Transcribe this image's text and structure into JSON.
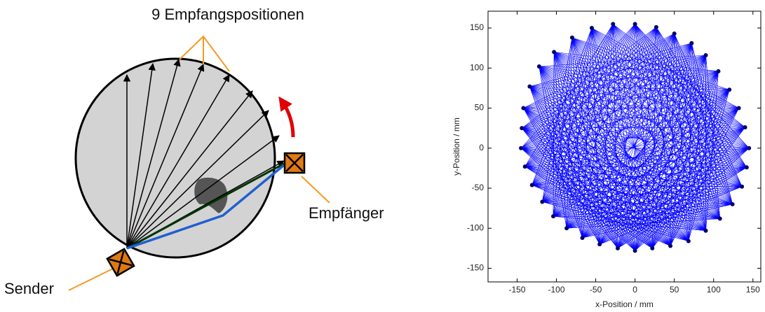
{
  "diagram": {
    "title": "9 Empfangspositionen",
    "receiver": "Empfänger",
    "sender": "Sender"
  },
  "chart_data": {
    "type": "scatter",
    "xlabel": "x-Position  /  mm",
    "ylabel": "y-Position  /  mm",
    "x": [
      0,
      27,
      50,
      72,
      90,
      106,
      120,
      132,
      140,
      145,
      142,
      136,
      124,
      108,
      90,
      68,
      45,
      22,
      0,
      -22,
      -45,
      -67,
      -87,
      -104,
      -118,
      -131,
      -140,
      -145,
      -144,
      -142,
      -134,
      -122,
      -103,
      -80,
      -55,
      -28
    ],
    "y": [
      155,
      151,
      143,
      131,
      116,
      96,
      73,
      50,
      26,
      0,
      -24,
      -48,
      -70,
      -88,
      -103,
      -116,
      -122,
      -125,
      -128,
      -125,
      -120,
      -112,
      -100,
      -85,
      -67,
      -46,
      -23,
      0,
      25,
      50,
      77,
      102,
      120,
      138,
      150,
      155
    ],
    "color": "#0000ff",
    "marker_color": "#000066",
    "xlim": [
      -187,
      160
    ],
    "ylim": [
      -167,
      171
    ],
    "xticks": [
      -150,
      -100,
      -50,
      0,
      50,
      100,
      150
    ],
    "yticks": [
      -150,
      -100,
      -50,
      0,
      50,
      100,
      150
    ]
  }
}
